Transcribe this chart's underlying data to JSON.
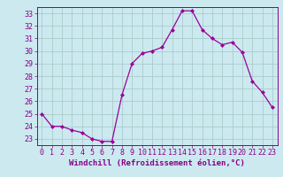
{
  "x": [
    0,
    1,
    2,
    3,
    4,
    5,
    6,
    7,
    8,
    9,
    10,
    11,
    12,
    13,
    14,
    15,
    16,
    17,
    18,
    19,
    20,
    21,
    22,
    23
  ],
  "y": [
    25.0,
    24.0,
    24.0,
    23.7,
    23.5,
    23.0,
    22.8,
    22.8,
    26.5,
    29.0,
    29.8,
    30.0,
    30.3,
    31.7,
    33.2,
    33.2,
    31.7,
    31.0,
    30.5,
    30.7,
    29.9,
    27.6,
    26.7,
    25.5
  ],
  "line_color": "#990099",
  "marker": "D",
  "marker_size": 2.0,
  "bg_color": "#cce9f0",
  "grid_color": "#aacccc",
  "xlabel": "Windchill (Refroidissement éolien,°C)",
  "xlim": [
    -0.5,
    23.5
  ],
  "ylim": [
    22.5,
    33.5
  ],
  "yticks": [
    23,
    24,
    25,
    26,
    27,
    28,
    29,
    30,
    31,
    32,
    33
  ],
  "xticks": [
    0,
    1,
    2,
    3,
    4,
    5,
    6,
    7,
    8,
    9,
    10,
    11,
    12,
    13,
    14,
    15,
    16,
    17,
    18,
    19,
    20,
    21,
    22,
    23
  ],
  "xlabel_fontsize": 6.5,
  "tick_fontsize": 6.0,
  "label_color": "#880088"
}
